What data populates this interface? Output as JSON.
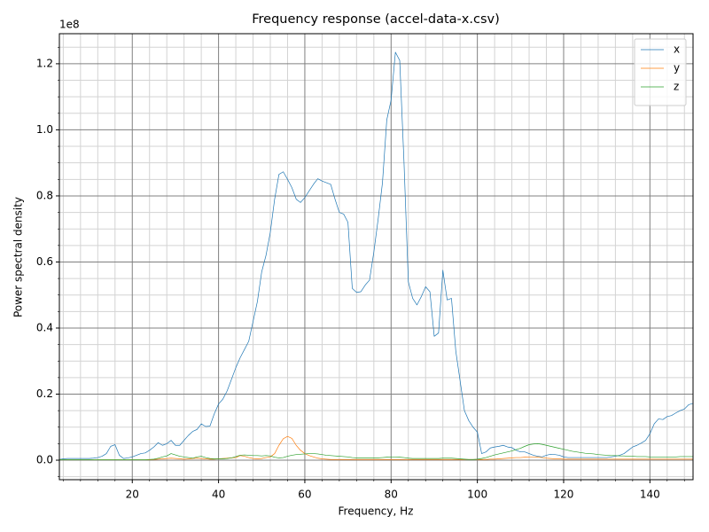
{
  "chart_data": {
    "type": "line",
    "title": "Frequency response (accel-data-x.csv)",
    "xlabel": "Frequency, Hz",
    "ylabel": "Power spectral density",
    "y_offset_text": "1e8",
    "x": [
      3,
      4,
      5,
      6,
      7,
      8,
      9,
      10,
      11,
      12,
      13,
      14,
      15,
      16,
      17,
      18,
      19,
      20,
      21,
      22,
      23,
      24,
      25,
      26,
      27,
      28,
      29,
      30,
      31,
      32,
      33,
      34,
      35,
      36,
      37,
      38,
      39,
      40,
      41,
      42,
      43,
      44,
      45,
      46,
      47,
      48,
      49,
      50,
      51,
      52,
      53,
      54,
      55,
      56,
      57,
      58,
      59,
      60,
      61,
      62,
      63,
      64,
      65,
      66,
      67,
      68,
      69,
      70,
      71,
      72,
      73,
      74,
      75,
      76,
      77,
      78,
      79,
      80,
      81,
      82,
      83,
      84,
      85,
      86,
      87,
      88,
      89,
      90,
      91,
      92,
      93,
      94,
      95,
      96,
      97,
      98,
      99,
      100,
      101,
      102,
      103,
      104,
      105,
      106,
      107,
      108,
      109,
      110,
      111,
      112,
      113,
      114,
      115,
      116,
      117,
      118,
      119,
      120,
      121,
      122,
      123,
      124,
      125,
      126,
      127,
      128,
      129,
      130,
      131,
      132,
      133,
      134,
      135,
      136,
      137,
      138,
      139,
      140,
      141,
      142,
      143,
      144,
      145,
      146,
      147,
      148,
      149,
      150
    ],
    "series": [
      {
        "name": "x",
        "color": "#1f77b4",
        "values": [
          0.002,
          0.004,
          0.005,
          0.005,
          0.005,
          0.005,
          0.005,
          0.005,
          0.006,
          0.008,
          0.012,
          0.02,
          0.042,
          0.047,
          0.015,
          0.005,
          0.007,
          0.01,
          0.015,
          0.02,
          0.022,
          0.03,
          0.04,
          0.053,
          0.045,
          0.05,
          0.06,
          0.045,
          0.045,
          0.06,
          0.075,
          0.087,
          0.093,
          0.11,
          0.102,
          0.103,
          0.14,
          0.17,
          0.185,
          0.21,
          0.245,
          0.28,
          0.31,
          0.335,
          0.36,
          0.42,
          0.48,
          0.57,
          0.62,
          0.69,
          0.79,
          0.865,
          0.873,
          0.85,
          0.825,
          0.79,
          0.78,
          0.795,
          0.815,
          0.835,
          0.852,
          0.845,
          0.84,
          0.835,
          0.79,
          0.75,
          0.745,
          0.72,
          0.52,
          0.508,
          0.51,
          0.53,
          0.545,
          0.63,
          0.73,
          0.84,
          1.03,
          1.09,
          1.235,
          1.21,
          0.9,
          0.54,
          0.49,
          0.47,
          0.495,
          0.525,
          0.51,
          0.375,
          0.385,
          0.575,
          0.485,
          0.49,
          0.33,
          0.24,
          0.15,
          0.12,
          0.1,
          0.085,
          0.02,
          0.025,
          0.037,
          0.04,
          0.042,
          0.045,
          0.04,
          0.038,
          0.03,
          0.025,
          0.025,
          0.02,
          0.015,
          0.012,
          0.01,
          0.015,
          0.018,
          0.017,
          0.015,
          0.01,
          0.008,
          0.008,
          0.008,
          0.008,
          0.008,
          0.008,
          0.008,
          0.008,
          0.008,
          0.008,
          0.01,
          0.012,
          0.015,
          0.02,
          0.03,
          0.04,
          0.045,
          0.052,
          0.06,
          0.08,
          0.11,
          0.125,
          0.123,
          0.132,
          0.135,
          0.143,
          0.15,
          0.155,
          0.168,
          0.172
        ]
      },
      {
        "name": "y",
        "color": "#ff7f0e",
        "values": [
          0.001,
          0.001,
          0.001,
          0.001,
          0.001,
          0.001,
          0.001,
          0.001,
          0.001,
          0.001,
          0.001,
          0.001,
          0.001,
          0.001,
          0.001,
          0.001,
          0.001,
          0.001,
          0.001,
          0.001,
          0.001,
          0.001,
          0.002,
          0.003,
          0.004,
          0.005,
          0.006,
          0.005,
          0.004,
          0.003,
          0.004,
          0.005,
          0.006,
          0.005,
          0.004,
          0.003,
          0.003,
          0.004,
          0.005,
          0.006,
          0.007,
          0.008,
          0.014,
          0.012,
          0.008,
          0.005,
          0.004,
          0.005,
          0.008,
          0.01,
          0.02,
          0.045,
          0.065,
          0.072,
          0.066,
          0.045,
          0.03,
          0.02,
          0.014,
          0.01,
          0.006,
          0.004,
          0.003,
          0.002,
          0.002,
          0.002,
          0.002,
          0.002,
          0.002,
          0.002,
          0.002,
          0.002,
          0.002,
          0.002,
          0.002,
          0.002,
          0.002,
          0.002,
          0.002,
          0.002,
          0.002,
          0.002,
          0.002,
          0.002,
          0.002,
          0.002,
          0.002,
          0.002,
          0.002,
          0.002,
          0.002,
          0.002,
          0.002,
          0.002,
          0.002,
          0.002,
          0.002,
          0.002,
          0.002,
          0.002,
          0.003,
          0.003,
          0.004,
          0.005,
          0.006,
          0.007,
          0.008,
          0.008,
          0.009,
          0.01,
          0.01,
          0.009,
          0.008,
          0.006,
          0.005,
          0.004,
          0.004,
          0.003,
          0.003,
          0.003,
          0.003,
          0.003,
          0.003,
          0.003,
          0.003,
          0.003,
          0.003,
          0.003,
          0.003,
          0.003,
          0.003,
          0.003,
          0.003,
          0.003,
          0.003,
          0.003,
          0.003,
          0.003,
          0.003,
          0.003,
          0.003,
          0.003,
          0.003,
          0.003,
          0.003,
          0.003,
          0.003,
          0.003
        ]
      },
      {
        "name": "z",
        "color": "#2ca02c",
        "values": [
          0.001,
          0.001,
          0.001,
          0.001,
          0.001,
          0.001,
          0.001,
          0.001,
          0.001,
          0.001,
          0.001,
          0.001,
          0.001,
          0.001,
          0.001,
          0.001,
          0.001,
          0.001,
          0.001,
          0.001,
          0.001,
          0.002,
          0.003,
          0.006,
          0.01,
          0.013,
          0.02,
          0.016,
          0.012,
          0.01,
          0.008,
          0.006,
          0.01,
          0.012,
          0.008,
          0.005,
          0.004,
          0.004,
          0.004,
          0.005,
          0.007,
          0.011,
          0.015,
          0.016,
          0.015,
          0.014,
          0.014,
          0.013,
          0.014,
          0.013,
          0.009,
          0.007,
          0.008,
          0.012,
          0.015,
          0.017,
          0.018,
          0.019,
          0.02,
          0.02,
          0.019,
          0.017,
          0.015,
          0.014,
          0.013,
          0.012,
          0.011,
          0.01,
          0.008,
          0.007,
          0.007,
          0.007,
          0.007,
          0.007,
          0.007,
          0.008,
          0.009,
          0.01,
          0.01,
          0.009,
          0.008,
          0.006,
          0.005,
          0.005,
          0.005,
          0.005,
          0.005,
          0.005,
          0.005,
          0.006,
          0.006,
          0.006,
          0.005,
          0.004,
          0.003,
          0.002,
          0.002,
          0.003,
          0.005,
          0.008,
          0.012,
          0.016,
          0.019,
          0.022,
          0.025,
          0.028,
          0.032,
          0.036,
          0.042,
          0.047,
          0.049,
          0.05,
          0.048,
          0.045,
          0.042,
          0.039,
          0.036,
          0.033,
          0.03,
          0.027,
          0.025,
          0.023,
          0.021,
          0.02,
          0.019,
          0.017,
          0.016,
          0.015,
          0.014,
          0.014,
          0.013,
          0.013,
          0.012,
          0.012,
          0.011,
          0.011,
          0.011,
          0.01,
          0.01,
          0.01,
          0.01,
          0.01,
          0.01,
          0.01,
          0.011,
          0.011,
          0.011,
          0.011
        ]
      }
    ],
    "xlim": [
      3.1,
      150
    ],
    "ylim": [
      -0.059,
      1.291
    ],
    "xticks": [
      20,
      40,
      60,
      80,
      100,
      120,
      140
    ],
    "yticks": [
      {
        "value": 0,
        "label": "0.0"
      },
      {
        "value": 0.2,
        "label": "0.2"
      },
      {
        "value": 0.4,
        "label": "0.4"
      },
      {
        "value": 0.6,
        "label": "0.6"
      },
      {
        "value": 0.8,
        "label": "0.8"
      },
      {
        "value": 1,
        "label": "1.0"
      },
      {
        "value": 1.2,
        "label": "1.2"
      }
    ],
    "xminorticks": [
      4,
      8,
      12,
      16,
      24,
      28,
      32,
      36,
      44,
      48,
      52,
      56,
      64,
      68,
      72,
      76,
      84,
      88,
      92,
      96,
      104,
      108,
      112,
      116,
      124,
      128,
      132,
      136,
      144,
      148
    ],
    "yminorticks": [
      -0.05,
      0.05,
      0.1,
      0.15,
      0.25,
      0.3,
      0.35,
      0.45,
      0.5,
      0.55,
      0.65,
      0.7,
      0.75,
      0.85,
      0.9,
      0.95,
      1.05,
      1.1,
      1.15,
      1.25
    ],
    "grid": true,
    "legend": "upper right"
  }
}
